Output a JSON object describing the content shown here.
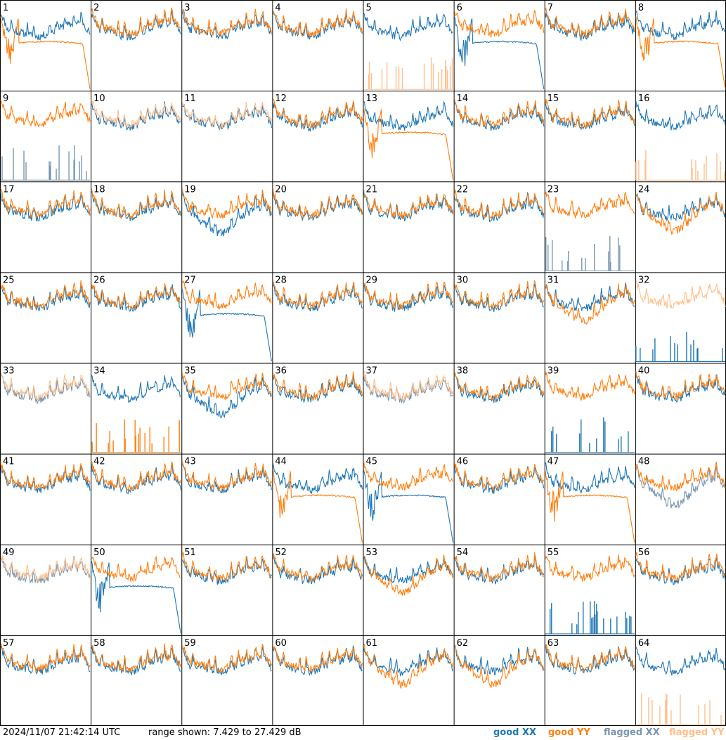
{
  "chart_data": {
    "type": "line",
    "panel_count": 64,
    "grid_columns": 8,
    "panel_labels": [
      "1",
      "2",
      "3",
      "4",
      "5",
      "6",
      "7",
      "8",
      "9",
      "10",
      "11",
      "12",
      "13",
      "14",
      "15",
      "16",
      "17",
      "18",
      "19",
      "20",
      "21",
      "22",
      "23",
      "24",
      "25",
      "26",
      "27",
      "28",
      "29",
      "30",
      "31",
      "32",
      "33",
      "34",
      "35",
      "36",
      "37",
      "38",
      "39",
      "40",
      "41",
      "42",
      "43",
      "44",
      "45",
      "46",
      "47",
      "48",
      "49",
      "50",
      "51",
      "52",
      "53",
      "54",
      "55",
      "56",
      "57",
      "58",
      "59",
      "60",
      "61",
      "62",
      "63",
      "64"
    ],
    "ylim": [
      7.429,
      27.429
    ],
    "y_unit": "dB",
    "series_colors": {
      "good_xx": "#1f77b4",
      "good_yy": "#ff7f0e",
      "flagged_xx": "#7a96b0",
      "flagged_yy": "#ffbf8a"
    },
    "panels": [
      {
        "xx": "good",
        "yy": "good",
        "xx_shape": "normal",
        "yy_shape": "dropout"
      },
      {
        "xx": "good",
        "yy": "good",
        "xx_shape": "normal",
        "yy_shape": "normal"
      },
      {
        "xx": "good",
        "yy": "good",
        "xx_shape": "normal",
        "yy_shape": "normal"
      },
      {
        "xx": "good",
        "yy": "good",
        "xx_shape": "normal",
        "yy_shape": "normal"
      },
      {
        "xx": "good",
        "yy": "flagged",
        "xx_shape": "normal",
        "yy_shape": "spikes"
      },
      {
        "xx": "good",
        "yy": "good",
        "xx_shape": "dropout",
        "yy_shape": "normal"
      },
      {
        "xx": "good",
        "yy": "good",
        "xx_shape": "normal",
        "yy_shape": "normal"
      },
      {
        "xx": "good",
        "yy": "good",
        "xx_shape": "normal",
        "yy_shape": "dropout"
      },
      {
        "xx": "flagged",
        "yy": "good",
        "xx_shape": "spikes",
        "yy_shape": "normal"
      },
      {
        "xx": "good",
        "yy": "flagged",
        "xx_shape": "normal",
        "yy_shape": "normal"
      },
      {
        "xx": "good",
        "yy": "flagged",
        "xx_shape": "normal",
        "yy_shape": "normal"
      },
      {
        "xx": "good",
        "yy": "good",
        "xx_shape": "normal",
        "yy_shape": "normal"
      },
      {
        "xx": "good",
        "yy": "good",
        "xx_shape": "normal",
        "yy_shape": "dropout"
      },
      {
        "xx": "good",
        "yy": "good",
        "xx_shape": "normal",
        "yy_shape": "normal"
      },
      {
        "xx": "good",
        "yy": "good",
        "xx_shape": "normal",
        "yy_shape": "normal"
      },
      {
        "xx": "good",
        "yy": "flagged",
        "xx_shape": "normal",
        "yy_shape": "spikes"
      },
      {
        "xx": "good",
        "yy": "good",
        "xx_shape": "normal",
        "yy_shape": "normal"
      },
      {
        "xx": "good",
        "yy": "good",
        "xx_shape": "normal",
        "yy_shape": "normal"
      },
      {
        "xx": "good",
        "yy": "good",
        "xx_shape": "low",
        "yy_shape": "normal"
      },
      {
        "xx": "good",
        "yy": "good",
        "xx_shape": "normal",
        "yy_shape": "normal"
      },
      {
        "xx": "good",
        "yy": "good",
        "xx_shape": "normal",
        "yy_shape": "normal"
      },
      {
        "xx": "good",
        "yy": "good",
        "xx_shape": "normal",
        "yy_shape": "normal"
      },
      {
        "xx": "flagged",
        "yy": "good",
        "xx_shape": "spikes",
        "yy_shape": "normal"
      },
      {
        "xx": "good",
        "yy": "good",
        "xx_shape": "normal",
        "yy_shape": "low"
      },
      {
        "xx": "good",
        "yy": "good",
        "xx_shape": "normal",
        "yy_shape": "normal"
      },
      {
        "xx": "good",
        "yy": "good",
        "xx_shape": "normal",
        "yy_shape": "normal"
      },
      {
        "xx": "good",
        "yy": "good",
        "xx_shape": "dropout",
        "yy_shape": "normal"
      },
      {
        "xx": "good",
        "yy": "good",
        "xx_shape": "normal",
        "yy_shape": "normal"
      },
      {
        "xx": "good",
        "yy": "good",
        "xx_shape": "normal",
        "yy_shape": "normal"
      },
      {
        "xx": "good",
        "yy": "good",
        "xx_shape": "normal",
        "yy_shape": "normal"
      },
      {
        "xx": "good",
        "yy": "good",
        "xx_shape": "normal",
        "yy_shape": "low"
      },
      {
        "xx": "good",
        "yy": "flagged",
        "xx_shape": "spikes",
        "yy_shape": "normal"
      },
      {
        "xx": "flagged",
        "yy": "flagged",
        "xx_shape": "normal",
        "yy_shape": "normal"
      },
      {
        "xx": "good",
        "yy": "good",
        "xx_shape": "normal",
        "yy_shape": "spikes"
      },
      {
        "xx": "good",
        "yy": "good",
        "xx_shape": "low",
        "yy_shape": "normal"
      },
      {
        "xx": "good",
        "yy": "good",
        "xx_shape": "normal",
        "yy_shape": "normal"
      },
      {
        "xx": "flagged",
        "yy": "flagged",
        "xx_shape": "normal",
        "yy_shape": "normal"
      },
      {
        "xx": "good",
        "yy": "good",
        "xx_shape": "normal",
        "yy_shape": "normal"
      },
      {
        "xx": "good",
        "yy": "good",
        "xx_shape": "spikes",
        "yy_shape": "normal"
      },
      {
        "xx": "good",
        "yy": "good",
        "xx_shape": "normal",
        "yy_shape": "normal"
      },
      {
        "xx": "good",
        "yy": "good",
        "xx_shape": "normal",
        "yy_shape": "normal"
      },
      {
        "xx": "good",
        "yy": "good",
        "xx_shape": "normal",
        "yy_shape": "normal"
      },
      {
        "xx": "good",
        "yy": "good",
        "xx_shape": "normal",
        "yy_shape": "normal"
      },
      {
        "xx": "good",
        "yy": "good",
        "xx_shape": "normal",
        "yy_shape": "dropout"
      },
      {
        "xx": "good",
        "yy": "good",
        "xx_shape": "dropout",
        "yy_shape": "normal"
      },
      {
        "xx": "good",
        "yy": "good",
        "xx_shape": "normal",
        "yy_shape": "normal"
      },
      {
        "xx": "good",
        "yy": "good",
        "xx_shape": "normal",
        "yy_shape": "dropout"
      },
      {
        "xx": "flagged",
        "yy": "good",
        "xx_shape": "low",
        "yy_shape": "normal"
      },
      {
        "xx": "flagged",
        "yy": "flagged",
        "xx_shape": "normal",
        "yy_shape": "normal"
      },
      {
        "xx": "good",
        "yy": "good",
        "xx_shape": "dropout",
        "yy_shape": "normal"
      },
      {
        "xx": "good",
        "yy": "good",
        "xx_shape": "normal",
        "yy_shape": "normal"
      },
      {
        "xx": "good",
        "yy": "good",
        "xx_shape": "normal",
        "yy_shape": "normal"
      },
      {
        "xx": "good",
        "yy": "good",
        "xx_shape": "normal",
        "yy_shape": "low"
      },
      {
        "xx": "good",
        "yy": "good",
        "xx_shape": "normal",
        "yy_shape": "normal"
      },
      {
        "xx": "good",
        "yy": "good",
        "xx_shape": "spikes",
        "yy_shape": "normal"
      },
      {
        "xx": "good",
        "yy": "good",
        "xx_shape": "normal",
        "yy_shape": "normal"
      },
      {
        "xx": "good",
        "yy": "good",
        "xx_shape": "normal",
        "yy_shape": "normal"
      },
      {
        "xx": "good",
        "yy": "good",
        "xx_shape": "normal",
        "yy_shape": "normal"
      },
      {
        "xx": "good",
        "yy": "good",
        "xx_shape": "normal",
        "yy_shape": "normal"
      },
      {
        "xx": "good",
        "yy": "good",
        "xx_shape": "normal",
        "yy_shape": "normal"
      },
      {
        "xx": "good",
        "yy": "good",
        "xx_shape": "normal",
        "yy_shape": "low"
      },
      {
        "xx": "good",
        "yy": "good",
        "xx_shape": "normal",
        "yy_shape": "low"
      },
      {
        "xx": "good",
        "yy": "good",
        "xx_shape": "normal",
        "yy_shape": "normal"
      },
      {
        "xx": "good",
        "yy": "flagged",
        "xx_shape": "normal",
        "yy_shape": "spikes"
      }
    ]
  },
  "footer": {
    "timestamp": "2024/11/07 21:42:14 UTC",
    "range_text": "range shown: 7.429 to 27.429 dB",
    "legend": {
      "good_xx": "good XX",
      "good_yy": "good YY",
      "flagged_xx": "flagged XX",
      "flagged_yy": "flagged YY"
    }
  }
}
